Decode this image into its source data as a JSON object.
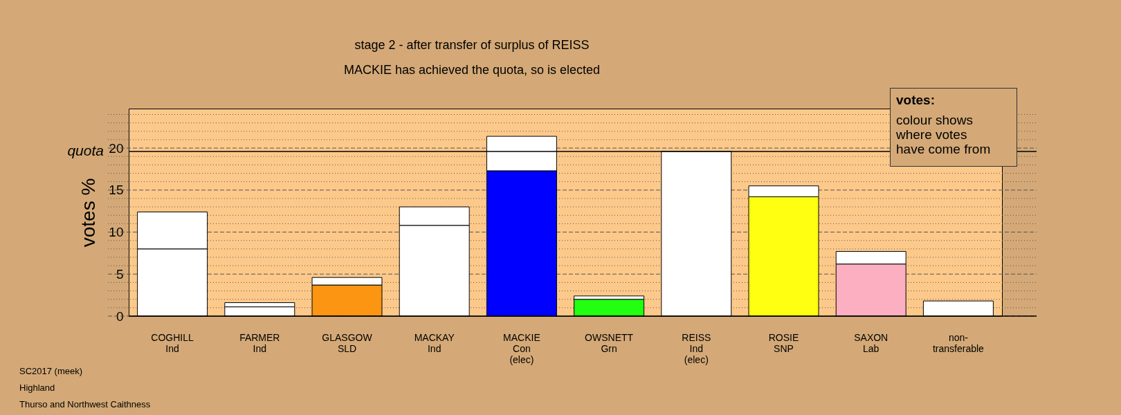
{
  "chart_data": {
    "type": "bar",
    "title": "stage 2 - after transfer of surplus of REISS",
    "subtitle": "MACKIE has achieved the quota, so is elected",
    "ylabel": "votes %",
    "categories": [
      "COGHILL\nInd",
      "FARMER\nInd",
      "GLASGOW\nSLD",
      "MACKAY\nInd",
      "MACKIE\nCon\n(elec)",
      "OWSNETT\nGrn",
      "REISS\nInd\n(elec)",
      "ROSIE\nSNP",
      "SAXON\nLab",
      "non-\ntransferable"
    ],
    "stacked": true,
    "series": [
      {
        "colors": [
          "#ffffff",
          "#ffffff",
          "#fb9512",
          "#ffffff",
          "#0000ff",
          "#22ff11",
          "#ffffff",
          "#ffff11",
          "#fbafc0",
          "#ffffff"
        ],
        "values": [
          8.0,
          1.1,
          3.7,
          10.8,
          17.3,
          2.0,
          19.6,
          14.2,
          6.2,
          1.8
        ]
      },
      {
        "color": "#ffffff",
        "values": [
          4.4,
          0.5,
          0.9,
          2.2,
          4.1,
          0.4,
          null,
          1.3,
          1.5,
          null
        ]
      }
    ],
    "ylim": [
      0,
      24.7
    ],
    "yticks": [
      0,
      {
        "value": 1,
        "label": null
      },
      {
        "value": 2,
        "label": null
      },
      {
        "value": 3,
        "label": null
      },
      {
        "value": 4,
        "label": null
      },
      5,
      {
        "value": 6,
        "label": null
      },
      {
        "value": 7,
        "label": null
      },
      {
        "value": 8,
        "label": null
      },
      {
        "value": 9,
        "label": null
      },
      10,
      {
        "value": 11,
        "label": null
      },
      {
        "value": 12,
        "label": null
      },
      {
        "value": 13,
        "label": null
      },
      {
        "value": 14,
        "label": null
      },
      15,
      {
        "value": 16,
        "label": null
      },
      {
        "value": 17,
        "label": null
      },
      {
        "value": 18,
        "label": null
      },
      {
        "value": 19,
        "label": null
      },
      20,
      {
        "value": 21,
        "label": null
      },
      {
        "value": 22,
        "label": null
      },
      {
        "value": 23,
        "label": null
      },
      {
        "value": 24,
        "label": null
      }
    ],
    "grid": "y",
    "ref_lines": [
      {
        "axis": "y",
        "value": 19.6,
        "label": "quota",
        "color": "#000000",
        "line_style": "solid"
      }
    ],
    "annotations": [
      "votes:",
      "colour shows where votes have come from",
      "SC2017 (meek)",
      "Highland",
      "Thurso and Northwest Caithness"
    ]
  }
}
